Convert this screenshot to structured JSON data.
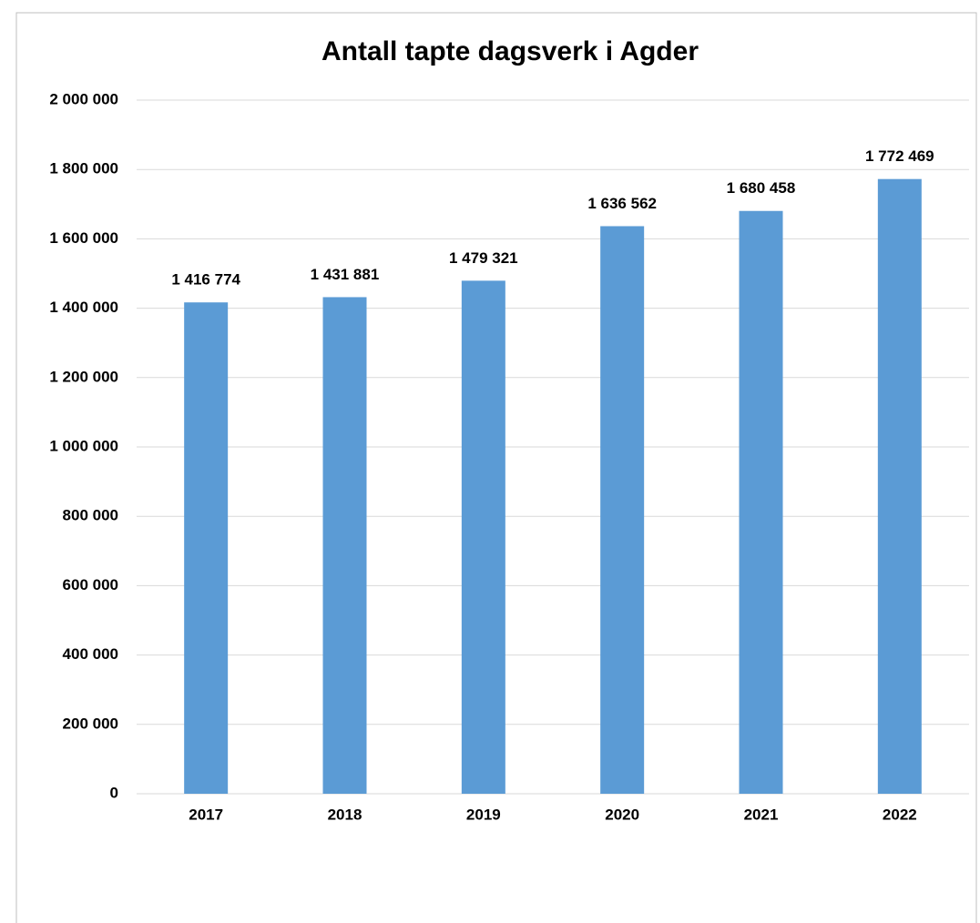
{
  "chart_data": {
    "type": "bar",
    "title": "Antall tapte dagsverk i Agder",
    "categories": [
      "2017",
      "2018",
      "2019",
      "2020",
      "2021",
      "2022"
    ],
    "values": [
      1416774,
      1431881,
      1479321,
      1636562,
      1680458,
      1772469
    ],
    "value_labels": [
      "1 416 774",
      "1 431 881",
      "1 479 321",
      "1 636 562",
      "1 680 458",
      "1 772 469"
    ],
    "color": "#5b9bd5",
    "ylim": [
      0,
      2000000
    ],
    "yticks": [
      0,
      {
        "value": 200000,
        "label": "200 000"
      },
      {
        "value": 400000,
        "label": "400 000"
      },
      {
        "value": 600000,
        "label": "600 000"
      },
      {
        "value": 800000,
        "label": "800 000"
      },
      {
        "value": 1000000,
        "label": "1 000 000"
      },
      {
        "value": 1200000,
        "label": "1 200 000"
      },
      {
        "value": 1400000,
        "label": "1 400 000"
      },
      {
        "value": 1600000,
        "label": "1 600 000"
      },
      {
        "value": 1800000,
        "label": "1 800 000"
      },
      {
        "value": 2000000,
        "label": "2 000 000"
      }
    ],
    "grid": true
  }
}
